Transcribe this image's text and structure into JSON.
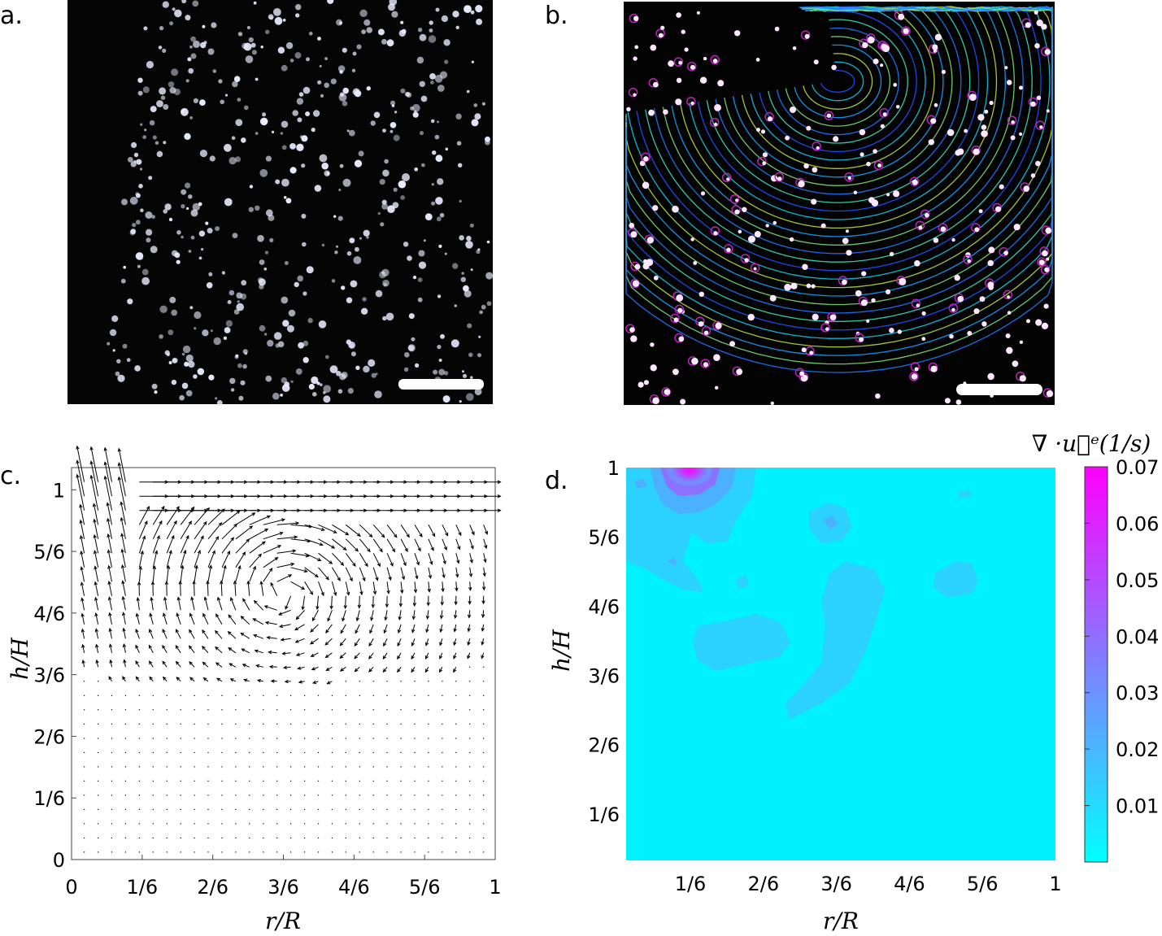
{
  "panel_labels": {
    "a": "a.",
    "b": "b.",
    "c": "c.",
    "d": "d."
  },
  "colors": {
    "contour_bg": "#00ffff",
    "contour_peak": "#ff00ff",
    "photo_bg": "#050505"
  },
  "chart_data": [
    {
      "panel": "c",
      "type": "quiver",
      "xlabel": "r/R",
      "ylabel": "h/H",
      "xticks": [
        "0",
        "1/6",
        "2/6",
        "3/6",
        "4/6",
        "5/6",
        "1"
      ],
      "yticks": [
        "0",
        "1/6",
        "2/6",
        "3/6",
        "4/6",
        "5/6",
        "1"
      ],
      "xlim": [
        0,
        1
      ],
      "ylim": [
        0,
        1.06
      ],
      "grid": false,
      "description_vortex_center": [
        0.5,
        0.72
      ]
    },
    {
      "panel": "d",
      "type": "heatmap",
      "xlabel": "r/R",
      "ylabel": "h/H",
      "xticks": [
        "1/6",
        "2/6",
        "3/6",
        "4/6",
        "5/6",
        "1"
      ],
      "yticks": [
        "1/6",
        "2/6",
        "3/6",
        "4/6",
        "5/6",
        "1"
      ],
      "colorbar_label": "∇ ·u⃗ᵉ(1/s)",
      "colorbar_ticks": [
        "0.01",
        "0.02",
        "0.03",
        "0.04",
        "0.05",
        "0.06",
        "0.07"
      ],
      "colorbar_range": [
        0,
        0.07
      ],
      "peak": {
        "r": 0.14,
        "h": 1.0,
        "value": 0.07
      }
    }
  ]
}
